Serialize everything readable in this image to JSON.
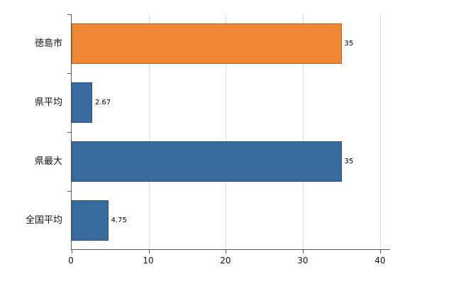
{
  "chart_data": {
    "type": "bar",
    "orientation": "horizontal",
    "title": "",
    "categories": [
      "徳島市",
      "県平均",
      "県最大",
      "全国平均"
    ],
    "values": [
      35,
      2.67,
      35,
      4.75
    ],
    "value_labels": [
      "35",
      "2.67",
      "35",
      "4.75"
    ],
    "series_colors": [
      "#ED8733",
      "#3A6B9E",
      "#3A6B9E",
      "#3A6B9E"
    ],
    "series_border_colors": [
      "#BC671F",
      "#28517D",
      "#28517D",
      "#28517D"
    ],
    "x_ticks": [
      "0",
      "10",
      "20",
      "30",
      "40"
    ],
    "x_tick_values": [
      0,
      10,
      20,
      30,
      40
    ],
    "xlim": [
      0,
      41.3
    ],
    "grid": true,
    "legend": false,
    "colors": {
      "grid": "#DCDCDC",
      "axis": "#595959",
      "text": "#111111"
    }
  }
}
